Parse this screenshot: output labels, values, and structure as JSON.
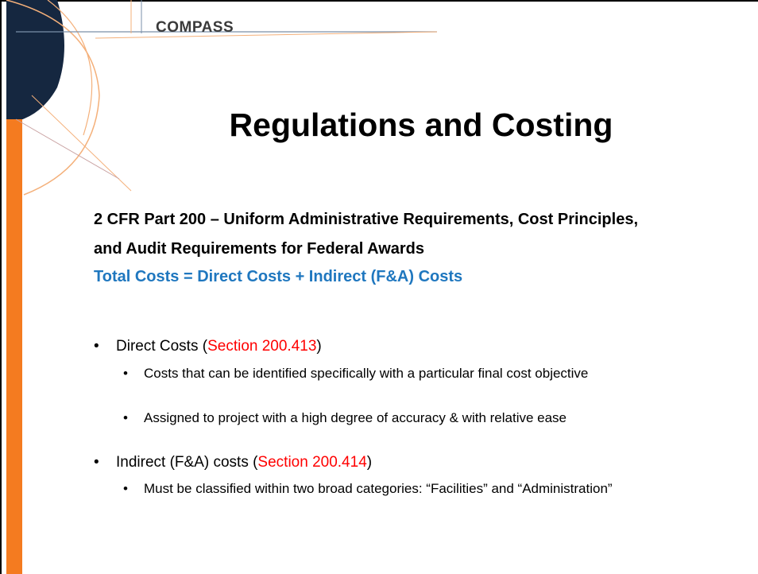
{
  "header": {
    "logo": "COMPASS",
    "title": "Regulations and Costing"
  },
  "heading": "2 CFR Part 200 – Uniform Administrative Requirements, Cost Principles, and Audit Requirements for Federal Awards",
  "formula": "Total Costs = Direct Costs + Indirect (F&A) Costs",
  "bullets": [
    {
      "text": "Direct Costs (",
      "section": "Section 200.413",
      "close": ")",
      "items": [
        "Costs that can be identified specifically with a particular final cost objective",
        "Assigned to project with a high degree of accuracy & with relative ease"
      ]
    },
    {
      "text": "Indirect (F&A) costs (",
      "section": "Section 200.414",
      "close": ")",
      "items": [
        "Must be classified within two broad categories:  “Facilities” and “Administration”"
      ]
    }
  ]
}
